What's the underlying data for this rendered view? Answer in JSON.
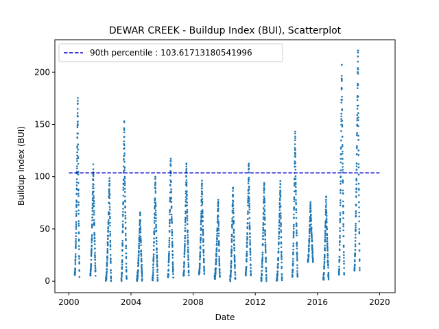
{
  "chart_data": {
    "type": "scatter",
    "title": "DEWAR CREEK - Buildup Index (BUI), Scatterplot",
    "xlabel": "Date",
    "ylabel": "Buildup Index (BUI)",
    "xlim": [
      1999.1,
      2021.0
    ],
    "ylim": [
      -11,
      231
    ],
    "xticks": [
      2000,
      2004,
      2008,
      2012,
      2016,
      2020
    ],
    "xtick_labels": [
      "2000",
      "2004",
      "2008",
      "2012",
      "2016",
      "2020"
    ],
    "yticks": [
      0,
      50,
      100,
      150,
      200
    ],
    "ytick_labels": [
      "0",
      "50",
      "100",
      "150",
      "200"
    ],
    "grid": false,
    "legend_position": "top-left",
    "series_color": "#1f77b4",
    "reference_line": {
      "label": "90th percentile : 103.61713180541996",
      "y": 103.61713180541996,
      "x_range": [
        2000.0,
        2020.0
      ],
      "color": "#0000cc",
      "style": "dashed"
    },
    "seasons": [
      {
        "year": 2000,
        "start": 2000.38,
        "end": 2000.68,
        "min": 4,
        "max": 177
      },
      {
        "year": 2001,
        "start": 2001.38,
        "end": 2001.72,
        "min": 5,
        "max": 112
      },
      {
        "year": 2002,
        "start": 2002.38,
        "end": 2002.72,
        "min": 0,
        "max": 100
      },
      {
        "year": 2003,
        "start": 2003.38,
        "end": 2003.72,
        "min": 0,
        "max": 155
      },
      {
        "year": 2004,
        "start": 2004.38,
        "end": 2004.72,
        "min": 0,
        "max": 67
      },
      {
        "year": 2005,
        "start": 2005.38,
        "end": 2005.72,
        "min": 0,
        "max": 100
      },
      {
        "year": 2006,
        "start": 2006.38,
        "end": 2006.72,
        "min": 3,
        "max": 121
      },
      {
        "year": 2007,
        "start": 2007.38,
        "end": 2007.72,
        "min": 5,
        "max": 114
      },
      {
        "year": 2008,
        "start": 2008.38,
        "end": 2008.72,
        "min": 6,
        "max": 98
      },
      {
        "year": 2009,
        "start": 2009.38,
        "end": 2009.72,
        "min": 2,
        "max": 78
      },
      {
        "year": 2010,
        "start": 2010.38,
        "end": 2010.72,
        "min": 0,
        "max": 92
      },
      {
        "year": 2011,
        "start": 2011.38,
        "end": 2011.72,
        "min": 5,
        "max": 114
      },
      {
        "year": 2012,
        "start": 2012.38,
        "end": 2012.72,
        "min": 0,
        "max": 98
      },
      {
        "year": 2013,
        "start": 2013.38,
        "end": 2013.72,
        "min": 0,
        "max": 97
      },
      {
        "year": 2014,
        "start": 2014.38,
        "end": 2014.72,
        "min": 4,
        "max": 144
      },
      {
        "year": 2015,
        "start": 2015.38,
        "end": 2015.72,
        "min": 18,
        "max": 77
      },
      {
        "year": 2016,
        "start": 2016.38,
        "end": 2016.72,
        "min": 1,
        "max": 83
      },
      {
        "year": 2017,
        "start": 2017.38,
        "end": 2017.72,
        "min": 6,
        "max": 210
      },
      {
        "year": 2018,
        "start": 2018.38,
        "end": 2018.72,
        "min": 10,
        "max": 224
      }
    ]
  }
}
